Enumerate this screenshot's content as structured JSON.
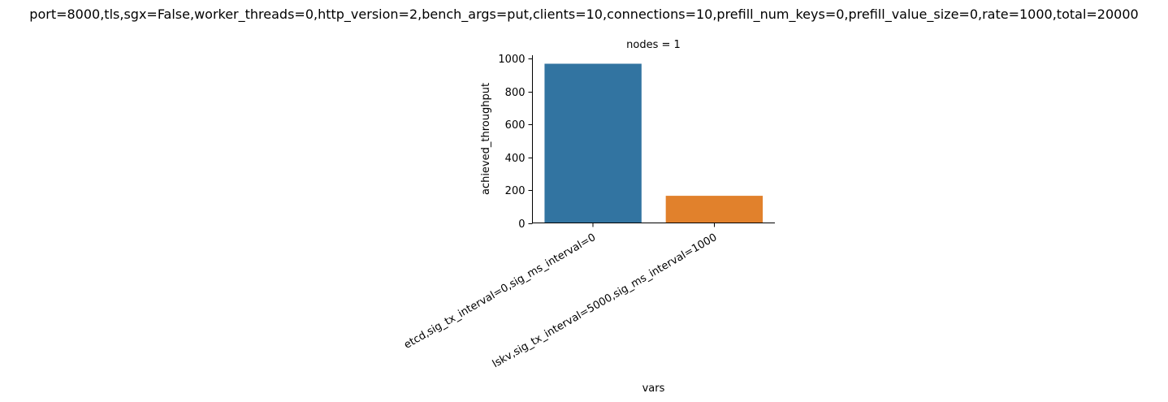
{
  "chart_data": {
    "type": "bar",
    "title": "port=8000,tls,sgx=False,worker_threads=0,http_version=2,bench_args=put,clients=10,connections=10,prefill_num_keys=0,prefill_value_size=0,rate=1000,total=20000",
    "facet_title": "nodes = 1",
    "xlabel": "vars",
    "ylabel": "achieved_throughput",
    "categories": [
      "etcd,sig_tx_interval=0,sig_ms_interval=0",
      "lskv,sig_tx_interval=5000,sig_ms_interval=1000"
    ],
    "values": [
      968,
      165
    ],
    "ylim": [
      0,
      1020
    ],
    "yticks": [
      0,
      200,
      400,
      600,
      800,
      1000
    ],
    "colors": [
      "#3274a1",
      "#e1812c"
    ],
    "grid": false,
    "legend": "none",
    "xtick_rotation": 30
  }
}
